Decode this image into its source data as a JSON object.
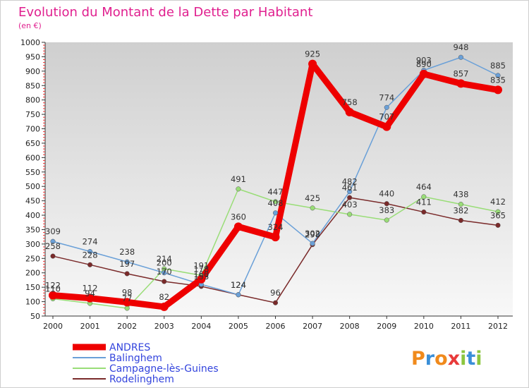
{
  "chart_data": {
    "type": "line",
    "title": "Evolution du Montant de la Dette par Habitant",
    "subtitle": "(en €)",
    "x": [
      "2000",
      "2001",
      "2002",
      "2003",
      "2004",
      "2005",
      "2006",
      "2007",
      "2008",
      "2009",
      "2010",
      "2011",
      "2012"
    ],
    "y_ticks": [
      "50",
      "100",
      "150",
      "200",
      "250",
      "300",
      "350",
      "400",
      "450",
      "500",
      "550",
      "600",
      "650",
      "700",
      "750",
      "800",
      "850",
      "900",
      "950",
      "1000"
    ],
    "ylim": [
      50,
      1000
    ],
    "grid": false,
    "legend_position": "bottom-left",
    "series": [
      {
        "name": "ANDRES",
        "color": "#ee0000",
        "values": [
          122,
          112,
          98,
          82,
          178,
          360,
          324,
          925,
          758,
          707,
          890,
          857,
          835
        ]
      },
      {
        "name": "Balinghem",
        "color": "#6aa0d8",
        "values": [
          309,
          274,
          238,
          200,
          160,
          124,
          408,
          302,
          482,
          774,
          903,
          948,
          885
        ]
      },
      {
        "name": "Campagne-lès-Guines",
        "color": "#99dd77",
        "values": [
          110,
          94,
          77,
          214,
          191,
          491,
          447,
          425,
          403,
          383,
          464,
          438,
          412
        ]
      },
      {
        "name": "Rodelinghem",
        "color": "#7a2a2a",
        "values": [
          258,
          228,
          197,
          170,
          153,
          124,
          96,
          298,
          461,
          440,
          411,
          382,
          365
        ]
      }
    ]
  },
  "logo": {
    "letters": [
      "P",
      "r",
      "o",
      "x",
      "i",
      "t",
      "i"
    ],
    "colors": [
      "#f08a1c",
      "#3a8fd8",
      "#f08a1c",
      "#e83a3a",
      "#8cc63f",
      "#3a8fd8",
      "#8cc63f"
    ]
  }
}
